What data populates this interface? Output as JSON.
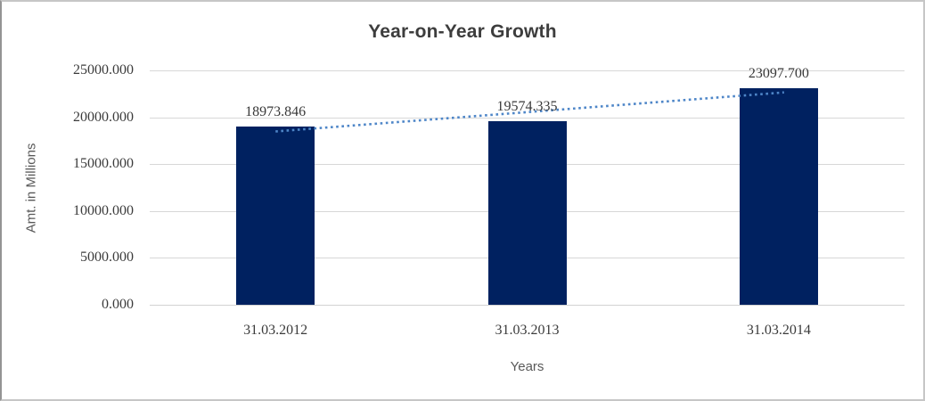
{
  "window": {
    "background": "#ffffff",
    "border_color": "#c6c6c6"
  },
  "chart_data": {
    "type": "bar",
    "title": "Year-on-Year Growth",
    "categories": [
      "31.03.2012",
      "31.03.2013",
      "31.03.2014"
    ],
    "values": [
      18973.846,
      19574.335,
      23097.7
    ],
    "data_labels": [
      "18973.846",
      "19574.335",
      "23097.700"
    ],
    "xlabel": "Years",
    "ylabel": "Amt. in Millions",
    "ylim": [
      0,
      25000
    ],
    "ytick_step": 5000,
    "ytick_labels": [
      "0.000",
      "5000.000",
      "10000.000",
      "15000.000",
      "20000.000",
      "25000.000"
    ],
    "grid": true,
    "legend_position": "none",
    "trendline": {
      "type": "linear",
      "style": "dotted",
      "color": "#4e86c8"
    },
    "colors": {
      "bar": "#002160",
      "gridline": "#d7d7d7",
      "title_text": "#3d3d3d",
      "tick_text": "#3b3b3b",
      "axis_title_text": "#595959"
    }
  }
}
